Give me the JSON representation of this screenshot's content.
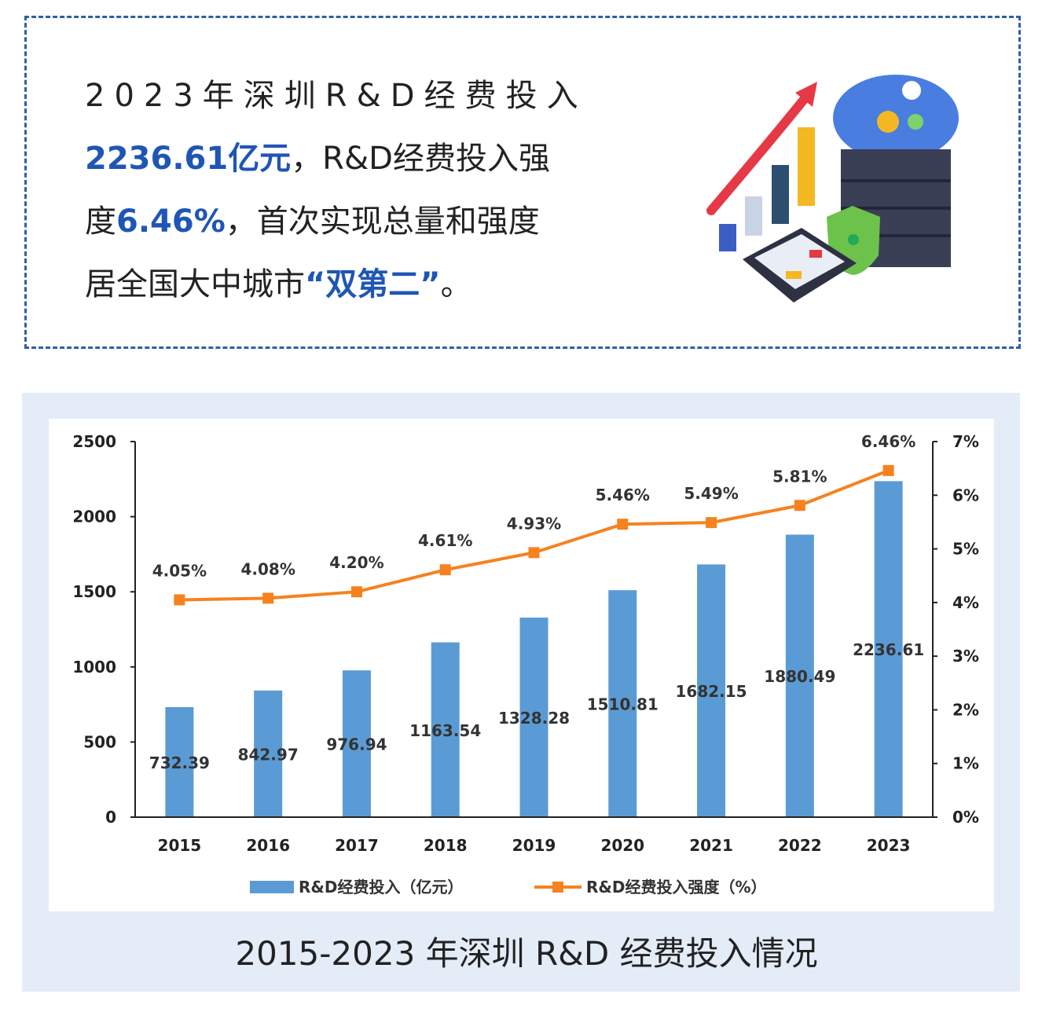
{
  "intro": {
    "line1": "2023年深圳R&D经费投入",
    "line2_value": "2236.61亿元",
    "line2_rest": "，R&D经费投入强",
    "line3_pre": "度",
    "line3_value": "6.46%",
    "line3_rest": "，首次实现总量和强度",
    "line4_pre": "居全国大中城市",
    "line4_value": "“双第二”",
    "line4_end": "。"
  },
  "chart_title": "2015-2023 年深圳 R&D 经费投入情况",
  "colors": {
    "bar": "#5b9bd5",
    "line": "#f5821f",
    "accent": "#1f56b5",
    "panel": "#e4ecf8"
  },
  "chart_data": {
    "type": "bar+line",
    "title": "2015-2023 年深圳 R&D 经费投入情况",
    "categories": [
      "2015",
      "2016",
      "2017",
      "2018",
      "2019",
      "2020",
      "2021",
      "2022",
      "2023"
    ],
    "series": [
      {
        "name": "R&D经费投入（亿元）",
        "type": "bar",
        "axis": "left",
        "values": [
          732.39,
          842.97,
          976.94,
          1163.54,
          1328.28,
          1510.81,
          1682.15,
          1880.49,
          2236.61
        ],
        "labels": [
          "732.39",
          "842.97",
          "976.94",
          "1163.54",
          "1328.28",
          "1510.81",
          "1682.15",
          "1880.49",
          "2236.61"
        ]
      },
      {
        "name": "R&D经费投入强度（%）",
        "type": "line",
        "axis": "right",
        "values": [
          4.05,
          4.08,
          4.2,
          4.61,
          4.93,
          5.46,
          5.49,
          5.81,
          6.46
        ],
        "labels": [
          "4.05%",
          "4.08%",
          "4.20%",
          "4.61%",
          "4.93%",
          "5.46%",
          "5.49%",
          "5.81%",
          "6.46%"
        ]
      }
    ],
    "ylim_left": [
      0,
      2500
    ],
    "yticks_left": [
      "0",
      "500",
      "1000",
      "1500",
      "2000",
      "2500"
    ],
    "ylim_right": [
      0,
      7
    ],
    "yticks_right": [
      "0%",
      "1%",
      "2%",
      "3%",
      "4%",
      "5%",
      "6%",
      "7%"
    ],
    "legend": [
      "R&D经费投入（亿元）",
      "R&D经费投入强度（%）"
    ],
    "legend_position": "bottom",
    "grid": false
  }
}
